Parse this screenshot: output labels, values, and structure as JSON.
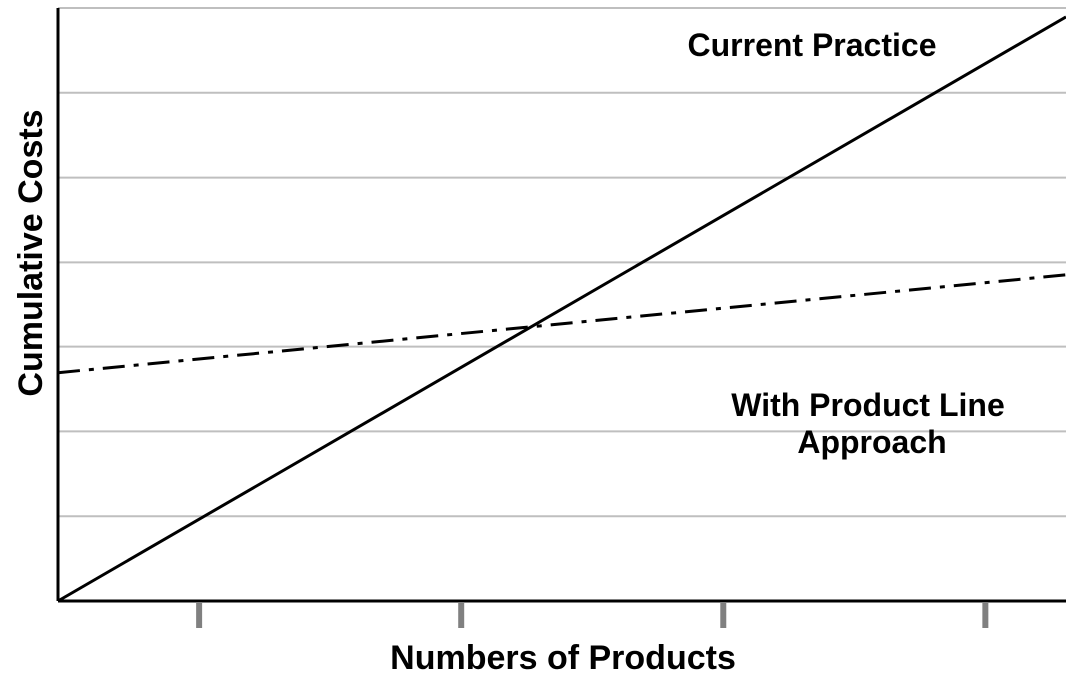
{
  "chart_data": {
    "type": "line",
    "title": "",
    "xlabel": "Numbers of Products",
    "ylabel": "Cumulative Costs",
    "xlim": [
      0,
      1
    ],
    "ylim": [
      0,
      1
    ],
    "x_ticks": [
      0.14,
      0.4,
      0.66,
      0.92
    ],
    "y_gridlines": [
      0.143,
      0.286,
      0.429,
      0.571,
      0.714,
      0.857,
      1.0
    ],
    "grid": true,
    "series": [
      {
        "name": "Current Practice",
        "style": "solid",
        "color": "#000000",
        "x": [
          0,
          1
        ],
        "y": [
          0,
          0.985
        ]
      },
      {
        "name": "With Product Line Approach",
        "style": "dash-dot",
        "color": "#000000",
        "x": [
          0,
          1
        ],
        "y": [
          0.385,
          0.55
        ]
      }
    ],
    "annotations": [
      {
        "text": "Current Practice"
      },
      {
        "text": "With Product Line",
        "text2": "Approach"
      }
    ]
  },
  "colors": {
    "grid": "#bfbfbf",
    "axis": "#000000",
    "tick": "#808080"
  }
}
